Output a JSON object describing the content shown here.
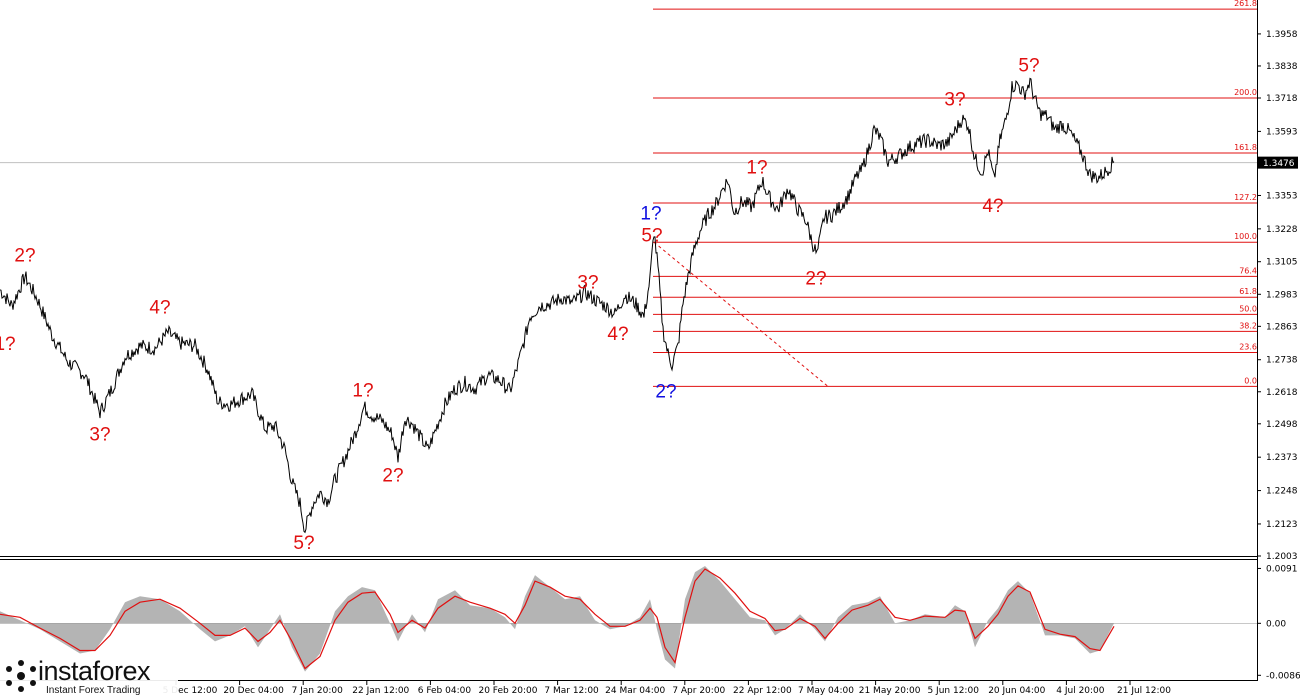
{
  "chart_data": [
    {
      "type": "line",
      "instrument_price_label": "1.3476",
      "y_axis_ticks": [
        "1.3958",
        "1.3838",
        "1.3718",
        "1.3593",
        "1.3476",
        "1.3353",
        "1.3228",
        "1.3105",
        "1.2983",
        "1.2863",
        "1.2738",
        "1.2618",
        "1.2498",
        "1.2373",
        "1.2248",
        "1.2123",
        "1.2003"
      ],
      "y_tick_values": [
        1.3958,
        1.3838,
        1.3718,
        1.3593,
        1.3353,
        1.3228,
        1.3105,
        1.2983,
        1.2863,
        1.2738,
        1.2618,
        1.2498,
        1.2373,
        1.2248,
        1.2123,
        1.2003
      ],
      "ylim": [
        1.2003,
        1.4085
      ],
      "x_axis_labels": [
        "5 Dec 12:00",
        "20 Dec 04:00",
        "7 Jan 20:00",
        "22 Jan 12:00",
        "6 Feb 04:00",
        "20 Feb 20:00",
        "7 Mar 12:00",
        "24 Mar 04:00",
        "7 Apr 20:00",
        "22 Apr 12:00",
        "7 May 04:00",
        "21 May 20:00",
        "5 Jun 12:00",
        "20 Jun 04:00",
        "4 Jul 20:00",
        "21 Jul 12:00"
      ],
      "current_price": 1.3476,
      "price_path": [
        [
          0,
          1.3
        ],
        [
          12,
          1.294
        ],
        [
          25,
          1.305
        ],
        [
          38,
          1.296
        ],
        [
          52,
          1.283
        ],
        [
          68,
          1.273
        ],
        [
          85,
          1.268
        ],
        [
          100,
          1.254
        ],
        [
          112,
          1.263
        ],
        [
          125,
          1.275
        ],
        [
          140,
          1.279
        ],
        [
          155,
          1.278
        ],
        [
          168,
          1.284
        ],
        [
          180,
          1.28
        ],
        [
          195,
          1.279
        ],
        [
          208,
          1.27
        ],
        [
          218,
          1.258
        ],
        [
          230,
          1.257
        ],
        [
          240,
          1.259
        ],
        [
          252,
          1.261
        ],
        [
          265,
          1.248
        ],
        [
          275,
          1.249
        ],
        [
          285,
          1.24
        ],
        [
          292,
          1.228
        ],
        [
          300,
          1.22
        ],
        [
          305,
          1.21
        ],
        [
          313,
          1.22
        ],
        [
          320,
          1.224
        ],
        [
          328,
          1.221
        ],
        [
          335,
          1.229
        ],
        [
          345,
          1.237
        ],
        [
          355,
          1.246
        ],
        [
          364,
          1.256
        ],
        [
          372,
          1.253
        ],
        [
          382,
          1.251
        ],
        [
          392,
          1.246
        ],
        [
          398,
          1.237
        ],
        [
          405,
          1.252
        ],
        [
          412,
          1.25
        ],
        [
          420,
          1.245
        ],
        [
          428,
          1.24
        ],
        [
          436,
          1.248
        ],
        [
          445,
          1.257
        ],
        [
          455,
          1.263
        ],
        [
          465,
          1.265
        ],
        [
          475,
          1.263
        ],
        [
          488,
          1.268
        ],
        [
          500,
          1.266
        ],
        [
          510,
          1.262
        ],
        [
          518,
          1.272
        ],
        [
          525,
          1.282
        ],
        [
          530,
          1.29
        ],
        [
          540,
          1.294
        ],
        [
          552,
          1.295
        ],
        [
          562,
          1.297
        ],
        [
          572,
          1.295
        ],
        [
          585,
          1.299
        ],
        [
          596,
          1.296
        ],
        [
          605,
          1.294
        ],
        [
          615,
          1.291
        ],
        [
          625,
          1.298
        ],
        [
          635,
          1.295
        ],
        [
          644,
          1.29
        ],
        [
          650,
          1.304
        ],
        [
          654,
          1.322
        ],
        [
          658,
          1.308
        ],
        [
          663,
          1.285
        ],
        [
          668,
          1.276
        ],
        [
          672,
          1.272
        ],
        [
          678,
          1.279
        ],
        [
          683,
          1.295
        ],
        [
          688,
          1.305
        ],
        [
          694,
          1.315
        ],
        [
          700,
          1.322
        ],
        [
          708,
          1.328
        ],
        [
          716,
          1.332
        ],
        [
          724,
          1.339
        ],
        [
          728,
          1.341
        ],
        [
          734,
          1.329
        ],
        [
          742,
          1.333
        ],
        [
          752,
          1.331
        ],
        [
          762,
          1.341
        ],
        [
          770,
          1.334
        ],
        [
          778,
          1.33
        ],
        [
          788,
          1.338
        ],
        [
          798,
          1.33
        ],
        [
          806,
          1.326
        ],
        [
          812,
          1.318
        ],
        [
          817,
          1.313
        ],
        [
          824,
          1.327
        ],
        [
          832,
          1.328
        ],
        [
          840,
          1.331
        ],
        [
          848,
          1.335
        ],
        [
          856,
          1.342
        ],
        [
          862,
          1.345
        ],
        [
          868,
          1.352
        ],
        [
          874,
          1.36
        ],
        [
          880,
          1.357
        ],
        [
          888,
          1.348
        ],
        [
          898,
          1.35
        ],
        [
          908,
          1.353
        ],
        [
          918,
          1.355
        ],
        [
          928,
          1.356
        ],
        [
          938,
          1.354
        ],
        [
          948,
          1.355
        ],
        [
          956,
          1.36
        ],
        [
          962,
          1.364
        ],
        [
          968,
          1.362
        ],
        [
          975,
          1.349
        ],
        [
          982,
          1.344
        ],
        [
          988,
          1.352
        ],
        [
          994,
          1.341
        ],
        [
          1000,
          1.356
        ],
        [
          1006,
          1.364
        ],
        [
          1012,
          1.376
        ],
        [
          1018,
          1.377
        ],
        [
          1024,
          1.373
        ],
        [
          1030,
          1.378
        ],
        [
          1035,
          1.371
        ],
        [
          1040,
          1.366
        ],
        [
          1047,
          1.365
        ],
        [
          1055,
          1.36
        ],
        [
          1062,
          1.362
        ],
        [
          1070,
          1.359
        ],
        [
          1076,
          1.355
        ],
        [
          1082,
          1.351
        ],
        [
          1090,
          1.343
        ],
        [
          1098,
          1.342
        ],
        [
          1105,
          1.344
        ],
        [
          1114,
          1.348
        ]
      ],
      "fib_levels": [
        {
          "label": "261.8",
          "value": 1.4051
        },
        {
          "label": "200.0",
          "value": 1.3718
        },
        {
          "label": "161.8",
          "value": 1.3512
        },
        {
          "label": "127.2",
          "value": 1.3325
        },
        {
          "label": "100.0",
          "value": 1.3178
        },
        {
          "label": "76.4",
          "value": 1.305
        },
        {
          "label": "61.8",
          "value": 1.2972
        },
        {
          "label": "50.0",
          "value": 1.2908
        },
        {
          "label": "38.2",
          "value": 1.2844
        },
        {
          "label": "23.6",
          "value": 1.2765
        },
        {
          "label": "0.0",
          "value": 1.2638
        }
      ],
      "wave_labels": [
        {
          "text": "2?",
          "color": "red",
          "xi": 25,
          "price": 1.3105
        },
        {
          "text": "1?",
          "color": "red",
          "xi": 5,
          "price": 1.2775
        },
        {
          "text": "3?",
          "color": "red",
          "xi": 100,
          "price": 1.2435
        },
        {
          "text": "4?",
          "color": "red",
          "xi": 160,
          "price": 1.2912
        },
        {
          "text": "1?",
          "color": "red",
          "xi": 363,
          "price": 1.26
        },
        {
          "text": "5?",
          "color": "red",
          "xi": 304,
          "price": 1.203
        },
        {
          "text": "2?",
          "color": "red",
          "xi": 393,
          "price": 1.2282
        },
        {
          "text": "3?",
          "color": "red",
          "xi": 588,
          "price": 1.3005
        },
        {
          "text": "4?",
          "color": "red",
          "xi": 618,
          "price": 1.2812
        },
        {
          "text": "5?",
          "color": "red",
          "xi": 652,
          "price": 1.3181
        },
        {
          "text": "1?",
          "color": "blue",
          "xi": 651,
          "price": 1.3263
        },
        {
          "text": "2?",
          "color": "blue",
          "xi": 666,
          "price": 1.2596
        },
        {
          "text": "1?",
          "color": "red",
          "xi": 757,
          "price": 1.3435
        },
        {
          "text": "2?",
          "color": "red",
          "xi": 816,
          "price": 1.302
        },
        {
          "text": "3?",
          "color": "red",
          "xi": 955,
          "price": 1.369
        },
        {
          "text": "4?",
          "color": "red",
          "xi": 993,
          "price": 1.3291
        },
        {
          "text": "5?",
          "color": "red",
          "xi": 1029,
          "price": 1.3817
        }
      ]
    },
    {
      "type": "area",
      "y_axis_ticks": [
        "0.0091",
        "0.00",
        "-0.00862"
      ],
      "ylim": [
        -0.0094,
        0.0105
      ],
      "histogram": [
        [
          0,
          0.002
        ],
        [
          20,
          0.0005
        ],
        [
          40,
          -0.001
        ],
        [
          60,
          -0.003
        ],
        [
          80,
          -0.005
        ],
        [
          95,
          -0.0045
        ],
        [
          110,
          -0.001
        ],
        [
          125,
          0.0035
        ],
        [
          140,
          0.0045
        ],
        [
          160,
          0.004
        ],
        [
          180,
          0.002
        ],
        [
          200,
          -0.001
        ],
        [
          215,
          -0.003
        ],
        [
          230,
          -0.002
        ],
        [
          245,
          -0.0005
        ],
        [
          258,
          -0.004
        ],
        [
          270,
          -0.001
        ],
        [
          280,
          0.0015
        ],
        [
          292,
          -0.004
        ],
        [
          305,
          -0.008
        ],
        [
          320,
          -0.005
        ],
        [
          335,
          0.002
        ],
        [
          348,
          0.0045
        ],
        [
          362,
          0.006
        ],
        [
          375,
          0.0055
        ],
        [
          390,
          0.0
        ],
        [
          398,
          -0.003
        ],
        [
          412,
          0.0015
        ],
        [
          425,
          -0.0015
        ],
        [
          438,
          0.004
        ],
        [
          455,
          0.0055
        ],
        [
          470,
          0.003
        ],
        [
          490,
          0.0025
        ],
        [
          505,
          0.001
        ],
        [
          515,
          -0.001
        ],
        [
          525,
          0.0045
        ],
        [
          535,
          0.008
        ],
        [
          550,
          0.006
        ],
        [
          565,
          0.004
        ],
        [
          580,
          0.0045
        ],
        [
          595,
          0.0005
        ],
        [
          610,
          -0.001
        ],
        [
          625,
          -0.0005
        ],
        [
          640,
          0.001
        ],
        [
          650,
          0.004
        ],
        [
          657,
          -0.001
        ],
        [
          665,
          -0.006
        ],
        [
          675,
          -0.0075
        ],
        [
          685,
          0.004
        ],
        [
          695,
          0.0085
        ],
        [
          705,
          0.0095
        ],
        [
          720,
          0.007
        ],
        [
          735,
          0.004
        ],
        [
          750,
          0.001
        ],
        [
          765,
          0.0005
        ],
        [
          775,
          -0.002
        ],
        [
          785,
          -0.001
        ],
        [
          800,
          0.0015
        ],
        [
          815,
          -0.001
        ],
        [
          825,
          -0.003
        ],
        [
          838,
          0.001
        ],
        [
          852,
          0.003
        ],
        [
          868,
          0.0035
        ],
        [
          880,
          0.0045
        ],
        [
          895,
          0.0
        ],
        [
          910,
          0.0005
        ],
        [
          925,
          0.0015
        ],
        [
          945,
          0.001
        ],
        [
          955,
          0.003
        ],
        [
          965,
          0.002
        ],
        [
          975,
          -0.004
        ],
        [
          988,
          0.0005
        ],
        [
          998,
          0.0025
        ],
        [
          1008,
          0.0055
        ],
        [
          1018,
          0.007
        ],
        [
          1030,
          0.005
        ],
        [
          1045,
          -0.002
        ],
        [
          1060,
          -0.002
        ],
        [
          1075,
          -0.0025
        ],
        [
          1090,
          -0.005
        ],
        [
          1100,
          -0.0045
        ],
        [
          1114,
          0.0
        ]
      ],
      "signal": [
        [
          0,
          0.0015
        ],
        [
          20,
          0.001
        ],
        [
          40,
          -0.0008
        ],
        [
          60,
          -0.0025
        ],
        [
          80,
          -0.0045
        ],
        [
          95,
          -0.0045
        ],
        [
          110,
          -0.002
        ],
        [
          125,
          0.002
        ],
        [
          140,
          0.0035
        ],
        [
          160,
          0.004
        ],
        [
          180,
          0.0025
        ],
        [
          200,
          0.0
        ],
        [
          215,
          -0.002
        ],
        [
          230,
          -0.002
        ],
        [
          245,
          -0.0008
        ],
        [
          258,
          -0.003
        ],
        [
          270,
          -0.0015
        ],
        [
          280,
          0.0005
        ],
        [
          292,
          -0.003
        ],
        [
          305,
          -0.0075
        ],
        [
          320,
          -0.0055
        ],
        [
          335,
          0.0005
        ],
        [
          348,
          0.0035
        ],
        [
          362,
          0.005
        ],
        [
          375,
          0.0052
        ],
        [
          390,
          0.0015
        ],
        [
          398,
          -0.0015
        ],
        [
          412,
          0.0005
        ],
        [
          425,
          -0.0008
        ],
        [
          438,
          0.0025
        ],
        [
          455,
          0.0045
        ],
        [
          470,
          0.0035
        ],
        [
          490,
          0.0025
        ],
        [
          505,
          0.0015
        ],
        [
          515,
          0.0
        ],
        [
          525,
          0.003
        ],
        [
          535,
          0.007
        ],
        [
          550,
          0.006
        ],
        [
          565,
          0.0045
        ],
        [
          580,
          0.004
        ],
        [
          595,
          0.0015
        ],
        [
          610,
          -0.0005
        ],
        [
          625,
          -0.0005
        ],
        [
          640,
          0.0005
        ],
        [
          650,
          0.0025
        ],
        [
          657,
          0.001
        ],
        [
          665,
          -0.004
        ],
        [
          675,
          -0.0065
        ],
        [
          685,
          0.001
        ],
        [
          695,
          0.007
        ],
        [
          705,
          0.009
        ],
        [
          720,
          0.0075
        ],
        [
          735,
          0.005
        ],
        [
          750,
          0.002
        ],
        [
          765,
          0.0008
        ],
        [
          775,
          -0.0012
        ],
        [
          785,
          -0.001
        ],
        [
          800,
          0.0008
        ],
        [
          815,
          -0.0005
        ],
        [
          825,
          -0.0025
        ],
        [
          838,
          0.0
        ],
        [
          852,
          0.0022
        ],
        [
          868,
          0.003
        ],
        [
          880,
          0.004
        ],
        [
          895,
          0.001
        ],
        [
          910,
          0.0005
        ],
        [
          925,
          0.0012
        ],
        [
          945,
          0.001
        ],
        [
          955,
          0.0022
        ],
        [
          965,
          0.002
        ],
        [
          975,
          -0.0025
        ],
        [
          988,
          -0.0005
        ],
        [
          998,
          0.0015
        ],
        [
          1008,
          0.0045
        ],
        [
          1018,
          0.0062
        ],
        [
          1030,
          0.0052
        ],
        [
          1045,
          -0.001
        ],
        [
          1060,
          -0.0018
        ],
        [
          1075,
          -0.0022
        ],
        [
          1090,
          -0.0042
        ],
        [
          1100,
          -0.0045
        ],
        [
          1114,
          -0.0005
        ]
      ]
    }
  ],
  "watermark": {
    "brand": "instaforex",
    "tagline": "Instant Forex Trading"
  }
}
